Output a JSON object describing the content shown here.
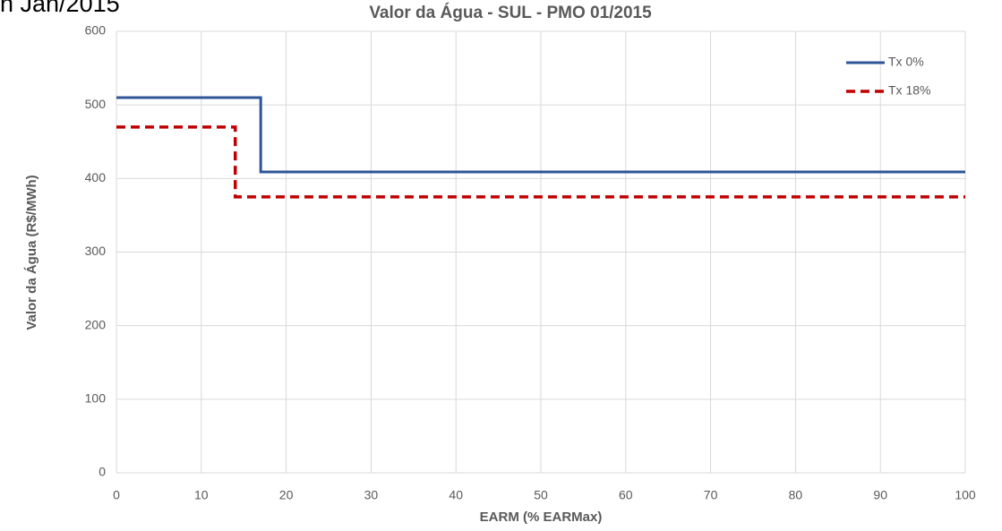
{
  "chart_data": {
    "type": "line",
    "annotations": [
      "n Jan/2015"
    ],
    "title": "Valor da Água - SUL - PMO 01/2015",
    "x_label": "EARM (% EARMax)",
    "y_label": "Valor da Água  (R$/MWh)",
    "xlim": [
      0,
      100
    ],
    "xticks": [
      0,
      10,
      20,
      30,
      40,
      50,
      60,
      70,
      80,
      90,
      100
    ],
    "ylim": [
      0,
      600
    ],
    "yticks": [
      0,
      100,
      200,
      300,
      400,
      500,
      600
    ],
    "grid": true,
    "legend": "top-right",
    "series": [
      {
        "name": "Tx 0%",
        "color": "#2f5597",
        "dash": false,
        "x": [
          0,
          17,
          17,
          100
        ],
        "values": [
          510,
          510,
          409,
          409
        ]
      },
      {
        "name": "Tx 18%",
        "color": "#c00000",
        "dash": true,
        "x": [
          0,
          14,
          14,
          100
        ],
        "values": [
          470,
          470,
          375,
          375
        ]
      }
    ]
  }
}
